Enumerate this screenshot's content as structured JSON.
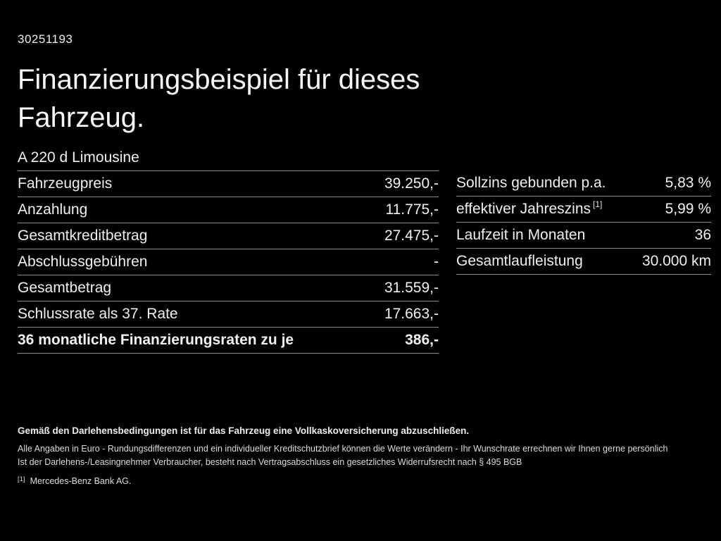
{
  "page": {
    "background_color": "#000000",
    "text_color": "#f4f4f4",
    "divider_color": "#8e8e8e"
  },
  "doc_id": "30251193",
  "title": "Finanzierungsbeispiel für dieses Fahrzeug.",
  "vehicle_model": "A 220 d Limousine",
  "finance_table": {
    "rows": [
      {
        "label": "Fahrzeugpreis",
        "value": "39.250,-"
      },
      {
        "label": "Anzahlung",
        "value": "11.775,-"
      },
      {
        "label": "Gesamtkreditbetrag",
        "value": "27.475,-"
      },
      {
        "label": "Abschlussgebühren",
        "value": "-"
      },
      {
        "label": "Gesamtbetrag",
        "value": "31.559,-"
      },
      {
        "label": "Schlussrate als 37. Rate",
        "value": "17.663,-"
      },
      {
        "label": "36 monatliche Finanzierungsraten zu je",
        "value": "386,-"
      }
    ]
  },
  "conditions_table": {
    "rows": [
      {
        "label": "Sollzins gebunden p.a.",
        "sup": "",
        "value": "5,83 %"
      },
      {
        "label": "effektiver Jahreszins",
        "sup": "[1]",
        "value": "5,99 %"
      },
      {
        "label": "Laufzeit in Monaten",
        "sup": "",
        "value": "36"
      },
      {
        "label": "Gesamtlaufleistung",
        "sup": "",
        "value": "30.000 km"
      }
    ]
  },
  "footer": {
    "insurance_note": "Gemäß den Darlehensbedingungen ist für das Fahrzeug eine Vollkaskoversicherung abzuschließen.",
    "disclaimer_line1": "Alle Angaben in Euro - Rundungsdifferenzen und ein individueller Kreditschutzbrief können die Werte verändern - Ihr Wunschrate errechnen wir Ihnen gerne persönlich",
    "disclaimer_line2": "Ist der Darlehens-/Leasingnehmer Verbraucher, besteht nach Vertragsabschluss ein gesetzliches Widerrufsrecht nach § 495 BGB",
    "footnote_marker": "[1]",
    "footnote_text": "Mercedes-Benz Bank AG."
  }
}
